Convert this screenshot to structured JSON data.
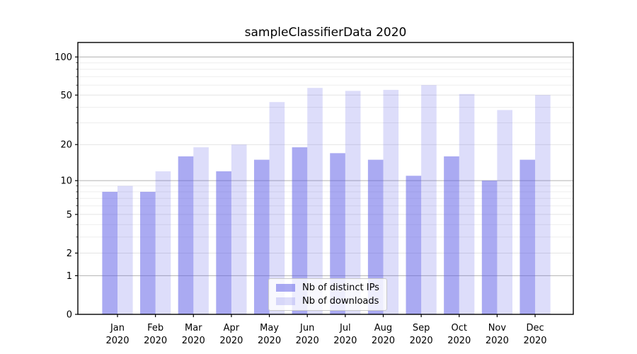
{
  "title": "sampleClassifierData 2020",
  "chart_data": {
    "type": "bar",
    "title": "sampleClassifierData 2020",
    "scale": "log1p",
    "grid": "horizontal",
    "legend_position": "bottom-center",
    "ylim": [
      0,
      130
    ],
    "yticks": [
      0,
      1,
      2,
      5,
      10,
      20,
      50,
      100
    ],
    "minor_yticks": [
      3,
      4,
      6,
      7,
      8,
      9,
      30,
      40,
      60,
      70,
      80,
      90
    ],
    "categories": [
      {
        "month": "Jan",
        "year": "2020"
      },
      {
        "month": "Feb",
        "year": "2020"
      },
      {
        "month": "Mar",
        "year": "2020"
      },
      {
        "month": "Apr",
        "year": "2020"
      },
      {
        "month": "May",
        "year": "2020"
      },
      {
        "month": "Jun",
        "year": "2020"
      },
      {
        "month": "Jul",
        "year": "2020"
      },
      {
        "month": "Aug",
        "year": "2020"
      },
      {
        "month": "Sep",
        "year": "2020"
      },
      {
        "month": "Oct",
        "year": "2020"
      },
      {
        "month": "Nov",
        "year": "2020"
      },
      {
        "month": "Dec",
        "year": "2020"
      }
    ],
    "series": [
      {
        "name": "Nb of distinct IPs",
        "color": "rgba(85,85,230,0.5)",
        "values": [
          8,
          8,
          16,
          12,
          15,
          19,
          17,
          15,
          11,
          16,
          10,
          15
        ]
      },
      {
        "name": "Nb of downloads",
        "color": "rgba(85,85,230,0.2)",
        "values": [
          9,
          12,
          19,
          20,
          44,
          57,
          54,
          55,
          60,
          51,
          38,
          50
        ]
      }
    ]
  }
}
